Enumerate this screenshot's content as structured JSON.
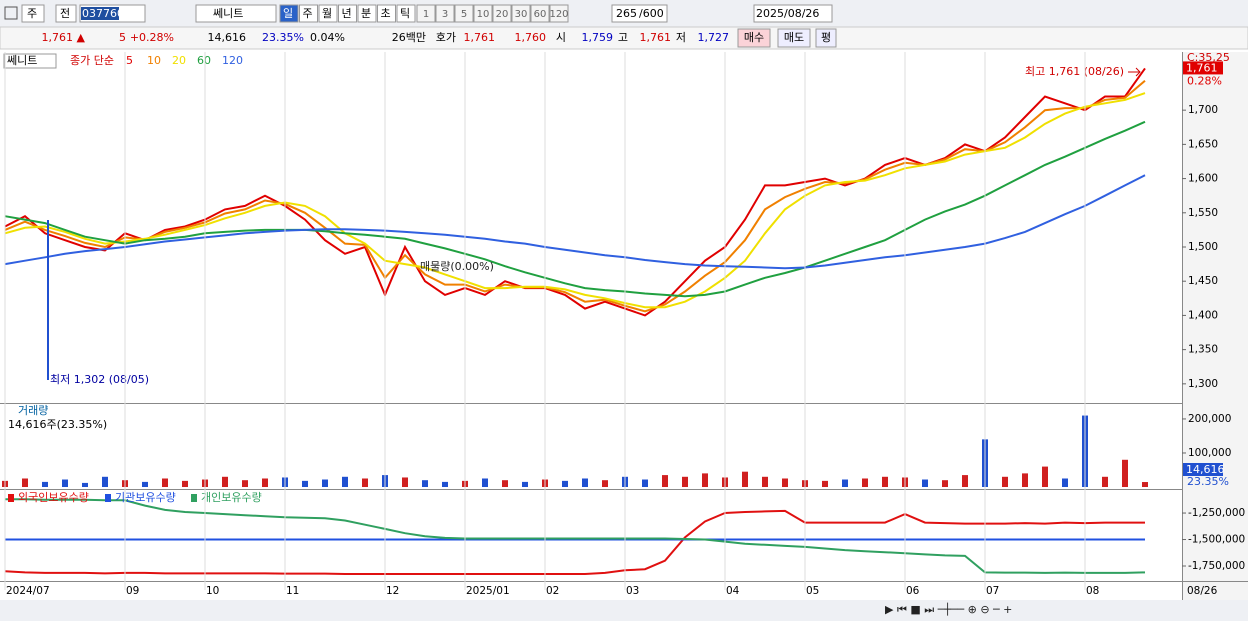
{
  "toolbar": {
    "period": "주",
    "mode": "전",
    "code": "037760",
    "name": "쎄니트",
    "intervals": [
      "일",
      "주",
      "월",
      "년",
      "분",
      "초",
      "틱"
    ],
    "minutes": [
      "1",
      "3",
      "5",
      "10",
      "20",
      "30",
      "60",
      "120"
    ],
    "count": "265",
    "count_max": "/600",
    "date": "2025/08/26"
  },
  "quote": {
    "items": [
      {
        "text": "1,761 ▲",
        "color": "#d00000"
      },
      {
        "text": "5",
        "color": "#d00000"
      },
      {
        "text": "+0.28%",
        "color": "#d00000"
      },
      {
        "text": "14,616",
        "color": "#000"
      },
      {
        "text": "23.35%",
        "color": "#0000c0"
      },
      {
        "text": "0.04%",
        "color": "#000"
      },
      {
        "text": "26백만",
        "color": "#000"
      },
      {
        "text": "호가",
        "color": "#000"
      },
      {
        "text": "1,761",
        "color": "#d00000"
      },
      {
        "text": "1,760",
        "color": "#d00000"
      },
      {
        "text": "시",
        "color": "#000"
      },
      {
        "text": "1,759",
        "color": "#0000c0"
      },
      {
        "text": "고",
        "color": "#000"
      },
      {
        "text": "1,761",
        "color": "#d00000"
      },
      {
        "text": "저",
        "color": "#000"
      },
      {
        "text": "1,727",
        "color": "#0000c0"
      }
    ],
    "buttons": [
      "매수",
      "매도",
      "평"
    ]
  },
  "chart_data": [
    {
      "type": "line",
      "name_label": "쎄니트",
      "legend_title": "종가 단순",
      "current_label": "1,761",
      "change_label": "0.28%",
      "corner_label": "C:35,25",
      "annotations": [
        "최고 1,761 (08/26)",
        "최저 1,302 (08/05)",
        "매물량(0.00%)"
      ],
      "ylim": [
        1272,
        1785
      ],
      "yticks": [
        {
          "value": 1300,
          "label": "1,300"
        },
        {
          "value": 1350,
          "label": "1,350"
        },
        {
          "value": 1400,
          "label": "1,400"
        },
        {
          "value": 1450,
          "label": "1,450"
        },
        {
          "value": 1500,
          "label": "1,500"
        },
        {
          "value": 1550,
          "label": "1,550"
        },
        {
          "value": 1600,
          "label": "1,600"
        },
        {
          "value": 1650,
          "label": "1,650"
        },
        {
          "value": 1700,
          "label": "1,700"
        }
      ],
      "series": [
        {
          "name": "5",
          "color": "#e00000",
          "values": [
            1530,
            1545,
            1520,
            1510,
            1500,
            1495,
            1520,
            1510,
            1525,
            1530,
            1540,
            1555,
            1560,
            1575,
            1560,
            1540,
            1510,
            1490,
            1500,
            1430,
            1500,
            1450,
            1430,
            1440,
            1430,
            1450,
            1440,
            1440,
            1430,
            1410,
            1420,
            1410,
            1400,
            1420,
            1450,
            1480,
            1500,
            1540,
            1590,
            1590,
            1595,
            1600,
            1590,
            1600,
            1620,
            1630,
            1620,
            1630,
            1650,
            1640,
            1660,
            1690,
            1720,
            1710,
            1700,
            1720,
            1720,
            1761
          ]
        },
        {
          "name": "10",
          "color": "#f08000",
          "values": [
            1525,
            1537,
            1525,
            1516,
            1506,
            1500,
            1514,
            1511,
            1522,
            1528,
            1536,
            1549,
            1555,
            1568,
            1563,
            1550,
            1528,
            1505,
            1503,
            1455,
            1488,
            1460,
            1445,
            1445,
            1435,
            1445,
            1441,
            1441,
            1434,
            1420,
            1423,
            1414,
            1406,
            1416,
            1435,
            1458,
            1478,
            1510,
            1555,
            1573,
            1585,
            1595,
            1593,
            1599,
            1613,
            1623,
            1620,
            1628,
            1643,
            1640,
            1653,
            1675,
            1700,
            1703,
            1703,
            1715,
            1718,
            1743
          ]
        },
        {
          "name": "20",
          "color": "#f0e000",
          "values": [
            1520,
            1528,
            1530,
            1522,
            1512,
            1505,
            1508,
            1512,
            1518,
            1525,
            1532,
            1542,
            1550,
            1560,
            1565,
            1560,
            1545,
            1520,
            1505,
            1480,
            1475,
            1470,
            1460,
            1450,
            1440,
            1440,
            1442,
            1442,
            1438,
            1430,
            1425,
            1418,
            1412,
            1412,
            1420,
            1435,
            1455,
            1480,
            1520,
            1555,
            1575,
            1590,
            1595,
            1597,
            1605,
            1615,
            1620,
            1625,
            1635,
            1640,
            1645,
            1660,
            1680,
            1695,
            1705,
            1710,
            1715,
            1725
          ]
        },
        {
          "name": "60",
          "color": "#20a040",
          "values": [
            1545,
            1540,
            1535,
            1525,
            1515,
            1510,
            1505,
            1510,
            1512,
            1515,
            1520,
            1522,
            1524,
            1525,
            1525,
            1525,
            1523,
            1520,
            1518,
            1515,
            1512,
            1505,
            1498,
            1490,
            1482,
            1472,
            1463,
            1455,
            1447,
            1440,
            1437,
            1435,
            1432,
            1430,
            1428,
            1430,
            1435,
            1445,
            1455,
            1462,
            1470,
            1480,
            1490,
            1500,
            1510,
            1525,
            1540,
            1552,
            1562,
            1575,
            1590,
            1605,
            1620,
            1632,
            1645,
            1658,
            1670,
            1683
          ]
        },
        {
          "name": "120",
          "color": "#3060e0",
          "values": [
            1475,
            1480,
            1485,
            1490,
            1494,
            1497,
            1500,
            1504,
            1508,
            1511,
            1514,
            1517,
            1520,
            1522,
            1524,
            1525,
            1526,
            1526,
            1525,
            1524,
            1522,
            1520,
            1518,
            1515,
            1512,
            1508,
            1505,
            1500,
            1496,
            1492,
            1488,
            1485,
            1481,
            1478,
            1475,
            1473,
            1472,
            1471,
            1470,
            1469,
            1470,
            1473,
            1477,
            1481,
            1485,
            1488,
            1492,
            1496,
            1500,
            1505,
            1513,
            1522,
            1535,
            1548,
            1560,
            1575,
            1590,
            1605
          ]
        }
      ]
    },
    {
      "type": "bar",
      "title": "거래량",
      "subtitle": "14,616주(23.35%)",
      "current_label": "14,616",
      "ratio_label": "23.35%",
      "up_color": "#d02020",
      "down_color": "#2050d0",
      "ylim": [
        0,
        241000
      ],
      "yticks": [
        {
          "value": 100000,
          "label": "100,000"
        },
        {
          "value": 200000,
          "label": "200,000"
        }
      ],
      "values": [
        18000,
        25000,
        15000,
        22000,
        12000,
        30000,
        20000,
        15000,
        25000,
        18000,
        22000,
        30000,
        20000,
        25000,
        28000,
        18000,
        22000,
        30000,
        25000,
        35000,
        28000,
        20000,
        15000,
        18000,
        25000,
        20000,
        15000,
        22000,
        18000,
        25000,
        20000,
        30000,
        22000,
        35000,
        30000,
        40000,
        28000,
        45000,
        30000,
        25000,
        20000,
        18000,
        22000,
        25000,
        30000,
        28000,
        22000,
        20000,
        35000,
        140000,
        30000,
        40000,
        60000,
        25000,
        210000,
        30000,
        80000,
        14616
      ]
    },
    {
      "type": "line",
      "ylim": [
        -1882000,
        -1042000
      ],
      "yticks": [
        {
          "value": -1750000,
          "label": "-1,750,000"
        },
        {
          "value": -1500000,
          "label": "-1,500,000"
        },
        {
          "value": -1250000,
          "label": "-1,250,000"
        }
      ],
      "categories": [
        "2024/07",
        null,
        null,
        null,
        null,
        null,
        "09",
        null,
        null,
        null,
        "10",
        null,
        null,
        null,
        "11",
        null,
        null,
        null,
        null,
        "12",
        null,
        null,
        null,
        "2025/01",
        null,
        null,
        null,
        "02",
        null,
        null,
        null,
        "03",
        null,
        null,
        null,
        null,
        "04",
        null,
        null,
        null,
        "05",
        null,
        null,
        null,
        null,
        "06",
        null,
        null,
        null,
        "07",
        null,
        null,
        null,
        null,
        "08",
        null,
        null,
        null
      ],
      "last_date": "08/26",
      "series": [
        {
          "name": "외국인보유수량",
          "color": "#e01010",
          "values": [
            -1800000,
            -1810000,
            -1815000,
            -1815000,
            -1815000,
            -1820000,
            -1815000,
            -1815000,
            -1820000,
            -1820000,
            -1820000,
            -1820000,
            -1820000,
            -1820000,
            -1822000,
            -1822000,
            -1822000,
            -1825000,
            -1825000,
            -1825000,
            -1825000,
            -1825000,
            -1825000,
            -1825000,
            -1825000,
            -1825000,
            -1825000,
            -1825000,
            -1825000,
            -1825000,
            -1815000,
            -1790000,
            -1780000,
            -1700000,
            -1480000,
            -1330000,
            -1250000,
            -1240000,
            -1235000,
            -1230000,
            -1340000,
            -1340000,
            -1340000,
            -1340000,
            -1340000,
            -1260000,
            -1340000,
            -1345000,
            -1350000,
            -1350000,
            -1350000,
            -1345000,
            -1350000,
            -1340000,
            -1345000,
            -1340000,
            -1340000,
            -1340000
          ]
        },
        {
          "name": "기관보유수량",
          "color": "#2050e0",
          "values": [
            -1500000,
            -1500000,
            -1500000,
            -1500000,
            -1500000,
            -1500000,
            -1500000,
            -1500000,
            -1500000,
            -1500000,
            -1500000,
            -1500000,
            -1500000,
            -1500000,
            -1500000,
            -1500000,
            -1500000,
            -1500000,
            -1500000,
            -1500000,
            -1500000,
            -1500000,
            -1500000,
            -1500000,
            -1500000,
            -1500000,
            -1500000,
            -1500000,
            -1500000,
            -1500000,
            -1500000,
            -1500000,
            -1500000,
            -1500000,
            -1500000,
            -1500000,
            -1500000,
            -1500000,
            -1500000,
            -1500000,
            -1500000,
            -1500000,
            -1500000,
            -1500000,
            -1500000,
            -1500000,
            -1500000,
            -1500000,
            -1500000,
            -1500000,
            -1500000,
            -1500000,
            -1500000,
            -1500000,
            -1500000,
            -1500000,
            -1500000,
            -1500000
          ]
        },
        {
          "name": "개인보유수량",
          "color": "#30a060",
          "values": [
            -1120000,
            -1120000,
            -1125000,
            -1125000,
            -1125000,
            -1130000,
            -1130000,
            -1180000,
            -1220000,
            -1240000,
            -1250000,
            -1260000,
            -1270000,
            -1280000,
            -1290000,
            -1295000,
            -1300000,
            -1320000,
            -1360000,
            -1400000,
            -1440000,
            -1470000,
            -1485000,
            -1490000,
            -1490000,
            -1490000,
            -1490000,
            -1490000,
            -1490000,
            -1490000,
            -1490000,
            -1490000,
            -1490000,
            -1490000,
            -1495000,
            -1500000,
            -1520000,
            -1540000,
            -1550000,
            -1560000,
            -1570000,
            -1585000,
            -1600000,
            -1610000,
            -1620000,
            -1630000,
            -1640000,
            -1650000,
            -1655000,
            -1810000,
            -1812000,
            -1812000,
            -1815000,
            -1812000,
            -1815000,
            -1815000,
            -1815000,
            -1810000
          ]
        }
      ]
    }
  ]
}
